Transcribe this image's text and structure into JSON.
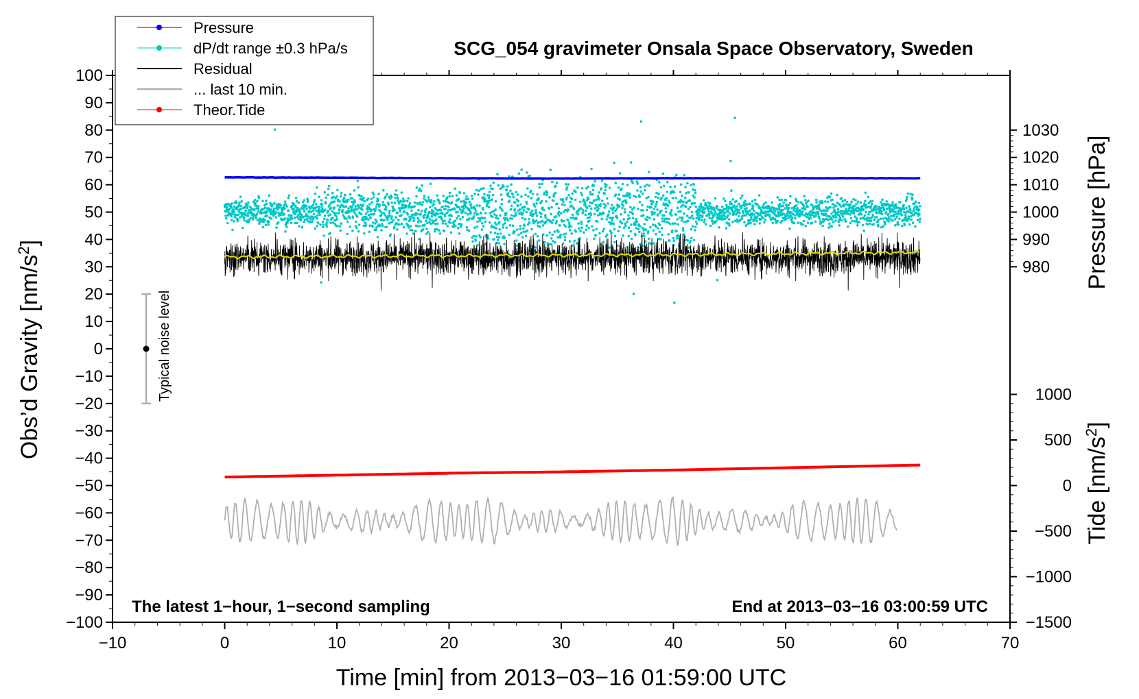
{
  "chart_data": {
    "type": "line",
    "title": "SCG_054 gravimeter Onsala Space Observatory, Sweden",
    "xlabel": "Time [min] from 2013−03−16 01:59:00 UTC",
    "ylabel_left_main": "Obs’d Gravity [nm/s",
    "ylabel_left_sup": "2",
    "ylabel_left_end": "]",
    "ylabel_right_top": "Pressure [hPa]",
    "ylabel_right_bottom_main": "Tide [nm/s",
    "ylabel_right_bottom_sup": "2",
    "ylabel_right_bottom_end": "]",
    "xlim": [
      -10,
      70
    ],
    "ylim": [
      -100,
      100
    ],
    "x_ticks": [
      -10,
      0,
      10,
      20,
      30,
      40,
      50,
      60,
      70
    ],
    "x_tick_labels": [
      "−10",
      "0",
      "10",
      "20",
      "30",
      "40",
      "50",
      "60",
      "70"
    ],
    "y_ticks": [
      100,
      90,
      80,
      70,
      60,
      50,
      40,
      30,
      20,
      10,
      0,
      -10,
      -20,
      -30,
      -40,
      -50,
      -60,
      -70,
      -80,
      -90,
      -100
    ],
    "y_tick_labels": [
      "100",
      "90",
      "80",
      "70",
      "60",
      "50",
      "40",
      "30",
      "20",
      "10",
      "0",
      "−10",
      "−20",
      "−30",
      "−40",
      "−50",
      "−60",
      "−70",
      "−80",
      "−90",
      "−100"
    ],
    "pressure_axis": {
      "ticks": [
        1030,
        1020,
        1010,
        1000,
        990,
        980
      ],
      "tick_labels": [
        "1030",
        "1020",
        "1010",
        "1000",
        "990",
        "980"
      ],
      "map": {
        "p0": 1000,
        "y0": 50,
        "scale": 1.0
      }
    },
    "tide_axis": {
      "ticks": [
        1000,
        500,
        0,
        -500,
        -1000,
        -1500
      ],
      "tick_labels": [
        "1000",
        "500",
        "0",
        "−500",
        "−1000",
        "−1500"
      ],
      "map": {
        "t0": 0,
        "y0": -50,
        "scale": 0.03333
      }
    },
    "annotations": {
      "left": "The latest 1−hour, 1−second sampling",
      "right": "End at 2013−03−16 03:00:59 UTC",
      "noise": "Typical noise level"
    },
    "legend": [
      {
        "label": "Pressure",
        "color": "#0000ff",
        "marker": true
      },
      {
        "label": "dP/dt range ±0.3 hPa/s",
        "color": "#00c8c8",
        "marker": true
      },
      {
        "label": "Residual",
        "color": "#000000",
        "marker": false
      },
      {
        "label": "... last 10 min.",
        "color": "#b0b0b0",
        "marker": false
      },
      {
        "label": "Theor.Tide",
        "color": "#ff0000",
        "marker": true
      }
    ],
    "series": [
      {
        "name": "Pressure",
        "axis": "pressure",
        "color": "#0000ff",
        "x": [
          0,
          10,
          20,
          28,
          30,
          40,
          50,
          62
        ],
        "values": [
          1012.7,
          1012.6,
          1012.4,
          1012.3,
          1012.3,
          1012.4,
          1012.4,
          1012.4
        ]
      },
      {
        "name": "dP/dt range ±0.3 hPa/s",
        "axis": "left",
        "color": "#00c8c8",
        "x_range": [
          0,
          62
        ],
        "center": 50,
        "note": "scattered points, mostly 45–55, outliers 10–88"
      },
      {
        "name": "Residual",
        "axis": "left",
        "color": "#000000",
        "x_range": [
          0,
          62
        ],
        "center": 33.5,
        "note": "noisy 1-second trace, mostly 25–42"
      },
      {
        "name": "Residual smoothed",
        "axis": "left",
        "color": "#d8d800",
        "x": [
          0,
          10,
          20,
          30,
          40,
          50,
          62
        ],
        "values": [
          33.6,
          33.8,
          34.0,
          34.2,
          34.4,
          34.8,
          35.3
        ]
      },
      {
        "name": "... last 10 min.",
        "axis": "left",
        "color": "#b0b0b0",
        "x_range": [
          0,
          60
        ],
        "center": -63,
        "note": "oscillating trace, amplitude about ±8"
      },
      {
        "name": "Theor.Tide",
        "axis": "tide",
        "color": "#ff0000",
        "x": [
          0,
          10,
          20,
          30,
          40,
          50,
          62
        ],
        "values": [
          93,
          114,
          135,
          150,
          170,
          195,
          225
        ]
      }
    ],
    "noise_bar": {
      "x": -7,
      "y_center": 0,
      "y_low": -20,
      "y_high": 20
    }
  }
}
